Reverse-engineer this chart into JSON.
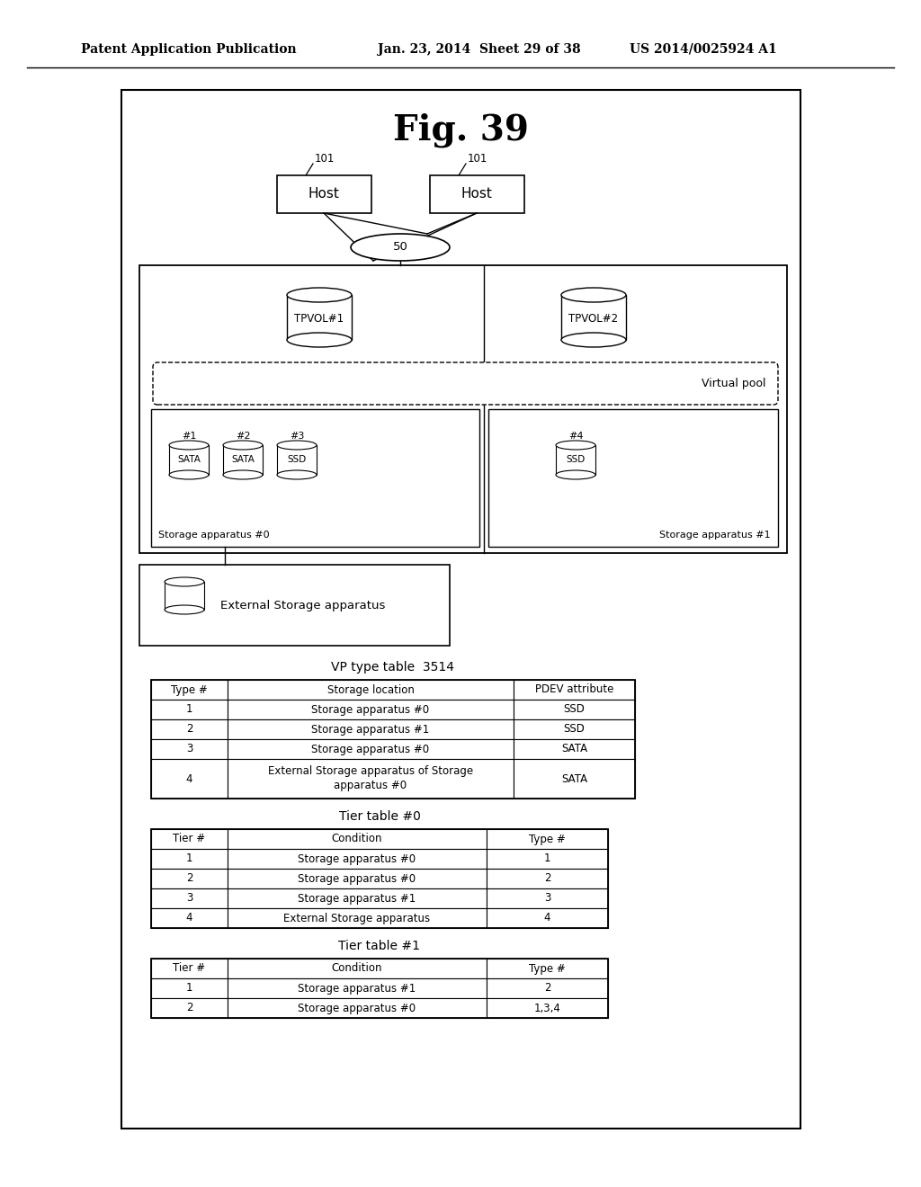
{
  "title": "Fig. 39",
  "header_left": "Patent Application Publication",
  "header_mid": "Jan. 23, 2014  Sheet 29 of 38",
  "header_right": "US 2014/0025924 A1",
  "fig_bg": "#ffffff",
  "vp_table_title": "VP type table  3514",
  "vp_table_headers": [
    "Type #",
    "Storage location",
    "PDEV attribute"
  ],
  "vp_table_rows": [
    [
      "1",
      "Storage apparatus #0",
      "SSD"
    ],
    [
      "2",
      "Storage apparatus #1",
      "SSD"
    ],
    [
      "3",
      "Storage apparatus #0",
      "SATA"
    ],
    [
      "4",
      "External Storage apparatus of Storage\napparatus #0",
      "SATA"
    ]
  ],
  "tier0_table_title": "Tier table #0",
  "tier0_table_headers": [
    "Tier #",
    "Condition",
    "Type #"
  ],
  "tier0_table_rows": [
    [
      "1",
      "Storage apparatus #0",
      "1"
    ],
    [
      "2",
      "Storage apparatus #0",
      "2"
    ],
    [
      "3",
      "Storage apparatus #1",
      "3"
    ],
    [
      "4",
      "External Storage apparatus",
      "4"
    ]
  ],
  "tier1_table_title": "Tier table #1",
  "tier1_table_headers": [
    "Tier #",
    "Condition",
    "Type #"
  ],
  "tier1_table_rows": [
    [
      "1",
      "Storage apparatus #1",
      "2"
    ],
    [
      "2",
      "Storage apparatus #0",
      "1,3,4"
    ]
  ]
}
